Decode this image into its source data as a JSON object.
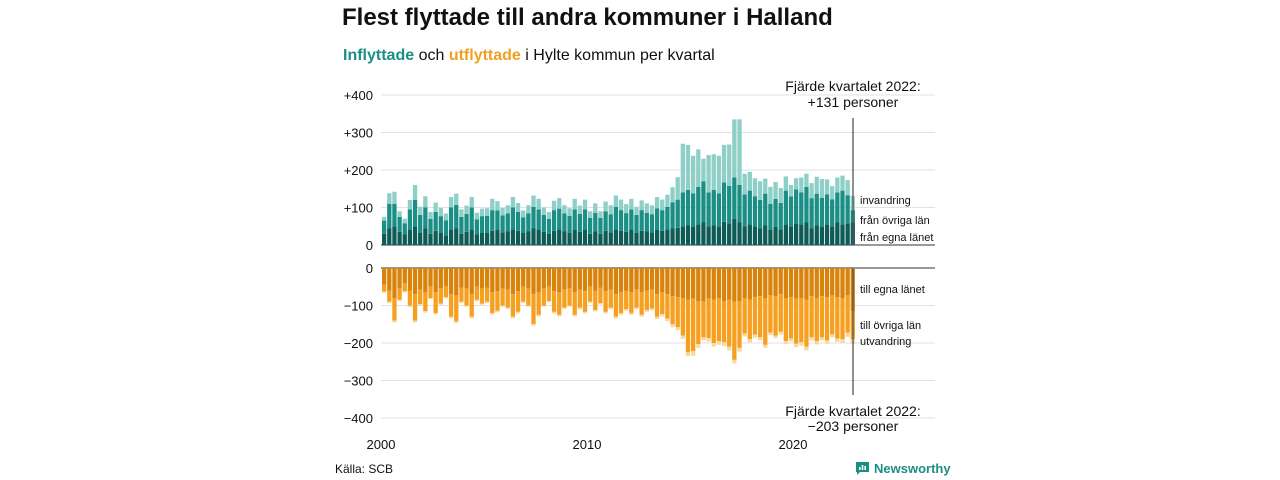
{
  "title": "Flest flyttade till andra kommuner i Halland",
  "subtitle": {
    "inflow": "Inflyttade",
    "connector": "och",
    "outflow": "utflyttade",
    "rest": "i Hylte kommun per kvartal"
  },
  "annotations": {
    "top_line1": "Fjärde kvartalet 2022:",
    "top_line2": "+131 personer",
    "bottom_line1": "Fjärde kvartalet 2022:",
    "bottom_line2": "−203 personer"
  },
  "source": "Källa: SCB",
  "brand": "Newsworthy",
  "colors": {
    "in_own_county": "#0f5c56",
    "in_other_counties": "#1b8f86",
    "in_immigration": "#8ed0c8",
    "out_own_county": "#d9830d",
    "out_other_counties": "#f5a020",
    "out_emigration": "#f8d9a0"
  },
  "chart_data": {
    "type": "bar",
    "stacked": true,
    "period": "quarterly",
    "x_start": "2000 Q1",
    "x_end": "2022 Q4",
    "x_ticks": [
      "2000",
      "2010",
      "2020"
    ],
    "top_panel": {
      "y_ticks": [
        "+400",
        "+300",
        "+200",
        "+100",
        "0"
      ],
      "ylim": [
        0,
        400
      ],
      "series_labels": [
        "från egna länet",
        "från övriga län",
        "invandring"
      ],
      "series": [
        {
          "name": "från egna länet",
          "values": [
            30,
            45,
            50,
            35,
            28,
            40,
            50,
            32,
            45,
            30,
            38,
            32,
            26,
            40,
            45,
            30,
            35,
            42,
            28,
            32,
            33,
            38,
            40,
            34,
            36,
            42,
            38,
            32,
            36,
            44,
            40,
            35,
            30,
            38,
            42,
            36,
            33,
            40,
            35,
            40,
            30,
            36,
            30,
            38,
            34,
            42,
            38,
            35,
            40,
            32,
            38,
            36,
            34,
            40,
            38,
            42,
            44,
            46,
            50,
            52,
            48,
            55,
            60,
            50,
            52,
            48,
            62,
            58,
            70,
            60,
            50,
            55,
            50,
            45,
            52,
            40,
            48,
            42,
            55,
            50,
            58,
            55,
            60,
            45,
            52,
            48,
            55,
            50,
            60,
            55,
            58,
            60
          ]
        },
        {
          "name": "från övriga län",
          "values": [
            35,
            65,
            60,
            40,
            30,
            55,
            70,
            48,
            55,
            40,
            50,
            45,
            40,
            60,
            62,
            45,
            48,
            58,
            40,
            45,
            45,
            55,
            52,
            45,
            48,
            58,
            50,
            42,
            48,
            58,
            55,
            45,
            40,
            55,
            55,
            48,
            45,
            55,
            48,
            55,
            42,
            50,
            42,
            52,
            48,
            60,
            55,
            50,
            55,
            48,
            55,
            50,
            48,
            58,
            55,
            60,
            70,
            75,
            90,
            95,
            90,
            100,
            110,
            90,
            95,
            90,
            105,
            100,
            110,
            100,
            85,
            90,
            80,
            75,
            85,
            70,
            75,
            70,
            90,
            80,
            90,
            85,
            95,
            80,
            85,
            78,
            80,
            72,
            80,
            90,
            75,
            33
          ]
        },
        {
          "name": "invandring",
          "values": [
            10,
            28,
            32,
            15,
            12,
            25,
            40,
            22,
            30,
            18,
            25,
            22,
            18,
            28,
            30,
            20,
            22,
            28,
            18,
            20,
            20,
            30,
            25,
            20,
            22,
            28,
            24,
            18,
            22,
            30,
            28,
            20,
            18,
            25,
            28,
            22,
            20,
            28,
            22,
            26,
            18,
            25,
            18,
            26,
            24,
            30,
            28,
            24,
            28,
            22,
            26,
            25,
            24,
            30,
            28,
            32,
            40,
            60,
            130,
            120,
            100,
            100,
            60,
            100,
            95,
            100,
            100,
            110,
            155,
            175,
            55,
            50,
            48,
            50,
            40,
            45,
            45,
            40,
            38,
            30,
            30,
            40,
            35,
            40,
            45,
            50,
            40,
            35,
            40,
            40,
            40,
            38
          ]
        }
      ]
    },
    "bottom_panel": {
      "y_ticks": [
        "0",
        "−100",
        "−200",
        "−300",
        "−400"
      ],
      "ylim": [
        -400,
        0
      ],
      "series_labels": [
        "till egna länet",
        "till övriga län",
        "utvandring"
      ],
      "series": [
        {
          "name": "till egna länet",
          "values": [
            -45,
            -60,
            -80,
            -55,
            -40,
            -60,
            -70,
            -58,
            -65,
            -50,
            -65,
            -55,
            -48,
            -70,
            -72,
            -52,
            -55,
            -70,
            -50,
            -55,
            -52,
            -65,
            -62,
            -55,
            -58,
            -70,
            -62,
            -50,
            -55,
            -70,
            -65,
            -55,
            -50,
            -62,
            -65,
            -58,
            -55,
            -65,
            -58,
            -62,
            -50,
            -60,
            -52,
            -62,
            -58,
            -70,
            -65,
            -60,
            -65,
            -58,
            -65,
            -60,
            -58,
            -70,
            -65,
            -70,
            -75,
            -78,
            -80,
            -85,
            -82,
            -88,
            -90,
            -82,
            -85,
            -80,
            -88,
            -85,
            -90,
            -88,
            -80,
            -85,
            -78,
            -75,
            -80,
            -72,
            -75,
            -70,
            -80,
            -78,
            -82,
            -80,
            -85,
            -75,
            -80,
            -75,
            -78,
            -72,
            -78,
            -80,
            -72,
            -115
          ]
        },
        {
          "name": "till övriga län",
          "values": [
            -18,
            -30,
            -60,
            -30,
            -22,
            -40,
            -70,
            -38,
            -50,
            -30,
            -55,
            -40,
            -30,
            -60,
            -70,
            -38,
            -45,
            -60,
            -35,
            -40,
            -38,
            -55,
            -52,
            -45,
            -48,
            -60,
            -55,
            -40,
            -45,
            -80,
            -60,
            -45,
            -38,
            -55,
            -60,
            -48,
            -45,
            -60,
            -48,
            -55,
            -40,
            -52,
            -42,
            -55,
            -48,
            -60,
            -55,
            -50,
            -55,
            -48,
            -60,
            -52,
            -50,
            -60,
            -58,
            -65,
            -75,
            -80,
            -100,
            -140,
            -140,
            -115,
            -95,
            -105,
            -115,
            -115,
            -110,
            -125,
            -155,
            -125,
            -95,
            -105,
            -100,
            -110,
            -125,
            -100,
            -105,
            -100,
            -115,
            -110,
            -120,
            -118,
            -125,
            -110,
            -115,
            -110,
            -115,
            -105,
            -110,
            -110,
            -100,
            -75
          ]
        },
        {
          "name": "utvandring",
          "values": [
            -3,
            -4,
            -5,
            -3,
            -3,
            -4,
            -5,
            -3,
            -4,
            -3,
            -4,
            -3,
            -3,
            -4,
            -5,
            -3,
            -3,
            -4,
            -3,
            -3,
            -3,
            -4,
            -4,
            -3,
            -3,
            -4,
            -4,
            -3,
            -3,
            -4,
            -4,
            -3,
            -3,
            -4,
            -4,
            -3,
            -3,
            -4,
            -4,
            -4,
            -3,
            -4,
            -3,
            -4,
            -4,
            -5,
            -5,
            -4,
            -5,
            -4,
            -5,
            -5,
            -5,
            -6,
            -6,
            -7,
            -8,
            -8,
            -9,
            -10,
            -12,
            -10,
            -8,
            -9,
            -10,
            -10,
            -10,
            -10,
            -10,
            -10,
            -8,
            -8,
            -8,
            -8,
            -8,
            -7,
            -7,
            -7,
            -8,
            -8,
            -9,
            -9,
            -10,
            -8,
            -9,
            -8,
            -9,
            -8,
            -9,
            -10,
            -12,
            -13
          ]
        }
      ]
    },
    "grid": true,
    "legend": "inline-right"
  }
}
